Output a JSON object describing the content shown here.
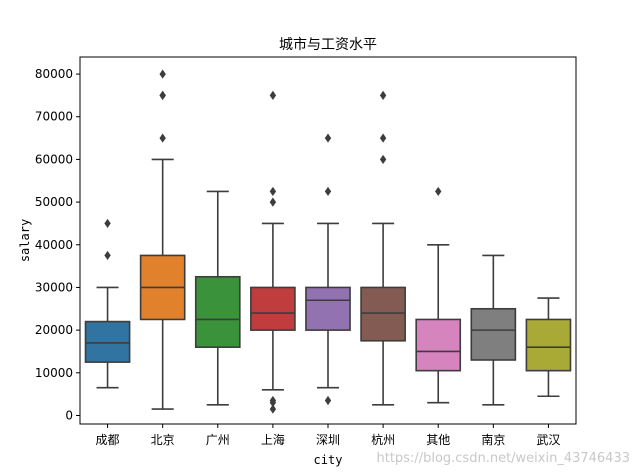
{
  "chart_data": {
    "type": "box",
    "title": "城市与工资水平",
    "xlabel": "city",
    "ylabel": "salary",
    "ylim": [
      -2000,
      84000
    ],
    "yticks": [
      0,
      10000,
      20000,
      30000,
      40000,
      50000,
      60000,
      70000,
      80000
    ],
    "ytick_labels": [
      "0",
      "10000",
      "20000",
      "30000",
      "40000",
      "50000",
      "60000",
      "70000",
      "80000"
    ],
    "grid": false,
    "legend": "none",
    "categories": [
      "成都",
      "北京",
      "广州",
      "上海",
      "深圳",
      "杭州",
      "其他",
      "南京",
      "武汉"
    ],
    "boxes": [
      {
        "city": "成都",
        "color": "#3274a1",
        "whislo": 6500,
        "q1": 12500,
        "median": 17000,
        "q3": 22000,
        "whishi": 30000,
        "fliers": [
          37500,
          45000
        ]
      },
      {
        "city": "北京",
        "color": "#e1812c",
        "whislo": 1500,
        "q1": 22500,
        "median": 30000,
        "q3": 37500,
        "whishi": 60000,
        "fliers": [
          65000,
          75000,
          75000,
          80000
        ]
      },
      {
        "city": "广州",
        "color": "#3a923a",
        "whislo": 2500,
        "q1": 16000,
        "median": 22500,
        "q3": 32500,
        "whishi": 52500,
        "fliers": []
      },
      {
        "city": "上海",
        "color": "#c03d3e",
        "whislo": 6000,
        "q1": 20000,
        "median": 24000,
        "q3": 30000,
        "whishi": 45000,
        "fliers": [
          1500,
          3000,
          3500,
          50000,
          52500,
          75000
        ]
      },
      {
        "city": "深圳",
        "color": "#9372b2",
        "whislo": 6500,
        "q1": 20000,
        "median": 27000,
        "q3": 30000,
        "whishi": 45000,
        "fliers": [
          3500,
          52500,
          65000
        ]
      },
      {
        "city": "杭州",
        "color": "#845b53",
        "whislo": 2500,
        "q1": 17500,
        "median": 24000,
        "q3": 30000,
        "whishi": 45000,
        "fliers": [
          60000,
          65000,
          75000
        ]
      },
      {
        "city": "其他",
        "color": "#d684bd",
        "whislo": 3000,
        "q1": 10500,
        "median": 15000,
        "q3": 22500,
        "whishi": 40000,
        "fliers": [
          52500
        ]
      },
      {
        "city": "南京",
        "color": "#7f7f7f",
        "whislo": 2500,
        "q1": 13000,
        "median": 20000,
        "q3": 25000,
        "whishi": 37500,
        "fliers": []
      },
      {
        "city": "武汉",
        "color": "#a9aa35",
        "whislo": 4500,
        "q1": 10500,
        "median": 16000,
        "q3": 22500,
        "whishi": 27500,
        "fliers": []
      }
    ]
  },
  "watermark": "https://blog.csdn.net/weixin_43746433"
}
